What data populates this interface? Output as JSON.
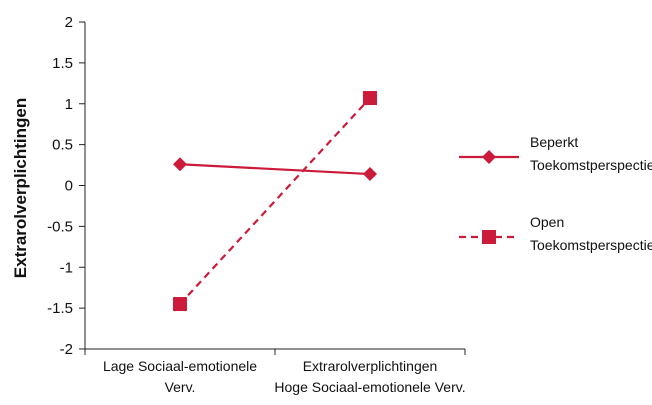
{
  "chart_data": {
    "type": "line",
    "ylabel": "Extrarolverplichtingen",
    "ylim": [
      -2,
      2
    ],
    "yticks": [
      "2",
      "1.5",
      "1",
      "0.5",
      "0",
      "-0.5",
      "-1",
      "-1.5",
      "-2"
    ],
    "ytick_values": [
      2,
      1.5,
      1,
      0.5,
      0,
      -0.5,
      -1,
      -1.5,
      -2
    ],
    "categories": [
      [
        "Lage Sociaal-emotionele",
        "Verv."
      ],
      [
        "Extrarolverplichtingen",
        "Hoge Sociaal-emotionele Verv."
      ]
    ],
    "series": [
      {
        "name_lines": [
          "Beperkt",
          "Toekomstperspectief"
        ],
        "values": [
          0.26,
          0.14
        ],
        "marker": "diamond",
        "dash": "solid",
        "color": "#cc1a3a"
      },
      {
        "name_lines": [
          "Open",
          "Toekomstperspectief"
        ],
        "values": [
          -1.45,
          1.07
        ],
        "marker": "square",
        "dash": "dashed",
        "color": "#cc1a3a"
      }
    ],
    "grid": false,
    "legend_position": "right"
  }
}
